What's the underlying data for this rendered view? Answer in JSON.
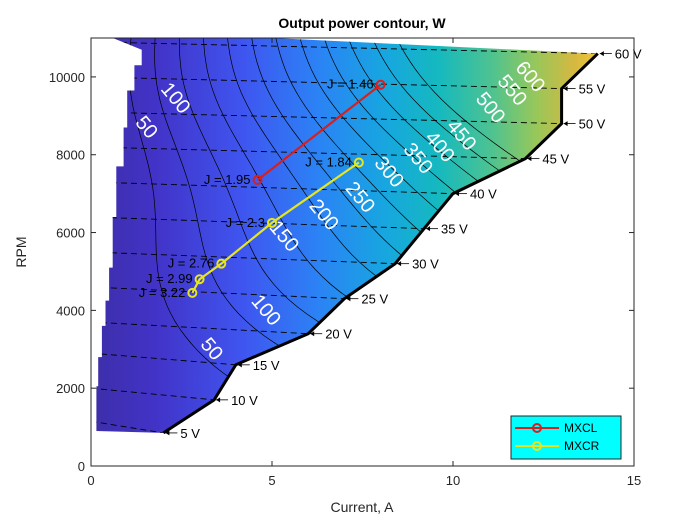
{
  "chart_data": {
    "type": "contour",
    "title": "Output power contour, W",
    "xlabel": "Current, A",
    "ylabel": "RPM",
    "xlim": [
      0,
      15
    ],
    "ylim": [
      0,
      11000
    ],
    "x_ticks": [
      0,
      5,
      10,
      15
    ],
    "y_ticks": [
      0,
      2000,
      4000,
      6000,
      8000,
      10000
    ],
    "contour_levels": [
      50,
      100,
      150,
      200,
      250,
      300,
      350,
      400,
      450,
      500,
      550,
      600
    ],
    "contour_labels": [
      {
        "text": "50",
        "x": 1.4,
        "y": 8600
      },
      {
        "text": "100",
        "x": 2.2,
        "y": 9350
      },
      {
        "text": "50",
        "x": 3.2,
        "y": 2900
      },
      {
        "text": "100",
        "x": 4.7,
        "y": 3900
      },
      {
        "text": "150",
        "x": 5.2,
        "y": 5800
      },
      {
        "text": "200",
        "x": 6.3,
        "y": 6350
      },
      {
        "text": "250",
        "x": 7.3,
        "y": 6800
      },
      {
        "text": "300",
        "x": 8.1,
        "y": 7450
      },
      {
        "text": "350",
        "x": 8.9,
        "y": 7800
      },
      {
        "text": "400",
        "x": 9.5,
        "y": 8100
      },
      {
        "text": "450",
        "x": 10.1,
        "y": 8400
      },
      {
        "text": "500",
        "x": 10.9,
        "y": 9100
      },
      {
        "text": "550",
        "x": 11.5,
        "y": 9550
      },
      {
        "text": "600",
        "x": 12.0,
        "y": 9900
      }
    ],
    "voltage_lines": [
      {
        "label": "5 V",
        "x_end": 2.0,
        "y": 850
      },
      {
        "label": "10 V",
        "x_end": 3.4,
        "y": 1700
      },
      {
        "label": "15 V",
        "x_end": 4.0,
        "y": 2600
      },
      {
        "label": "20 V",
        "x_end": 6.0,
        "y": 3400
      },
      {
        "label": "25 V",
        "x_end": 7.0,
        "y": 4300
      },
      {
        "label": "30 V",
        "x_end": 8.4,
        "y": 5200
      },
      {
        "label": "35 V",
        "x_end": 9.2,
        "y": 6100
      },
      {
        "label": "40 V",
        "x_end": 10.0,
        "y": 7000
      },
      {
        "label": "45 V",
        "x_end": 12.0,
        "y": 7900
      },
      {
        "label": "50 V",
        "x_end": 13.0,
        "y": 8800
      },
      {
        "label": "55 V",
        "x_end": 13.0,
        "y": 9700
      },
      {
        "label": "60 V",
        "x_end": 14.0,
        "y": 10600
      }
    ],
    "series": [
      {
        "name": "MXCL",
        "color": "#d62020",
        "x": [
          4.6,
          8.0
        ],
        "y": [
          7350,
          9800
        ],
        "point_labels": [
          "J = 1.95",
          "J = 1.46"
        ]
      },
      {
        "name": "MXCR",
        "color": "#e6e61e",
        "x": [
          2.8,
          3.0,
          3.6,
          5.0,
          7.4
        ],
        "y": [
          4450,
          4800,
          5200,
          6250,
          7800
        ],
        "point_labels": [
          "J = 3.22",
          "J = 2.99",
          "J = 2.76",
          "J = 2.3",
          "J = 1.84"
        ]
      }
    ],
    "legend_position": "bottom-right",
    "legend_background": "#00ffff",
    "colormap": "parula"
  }
}
